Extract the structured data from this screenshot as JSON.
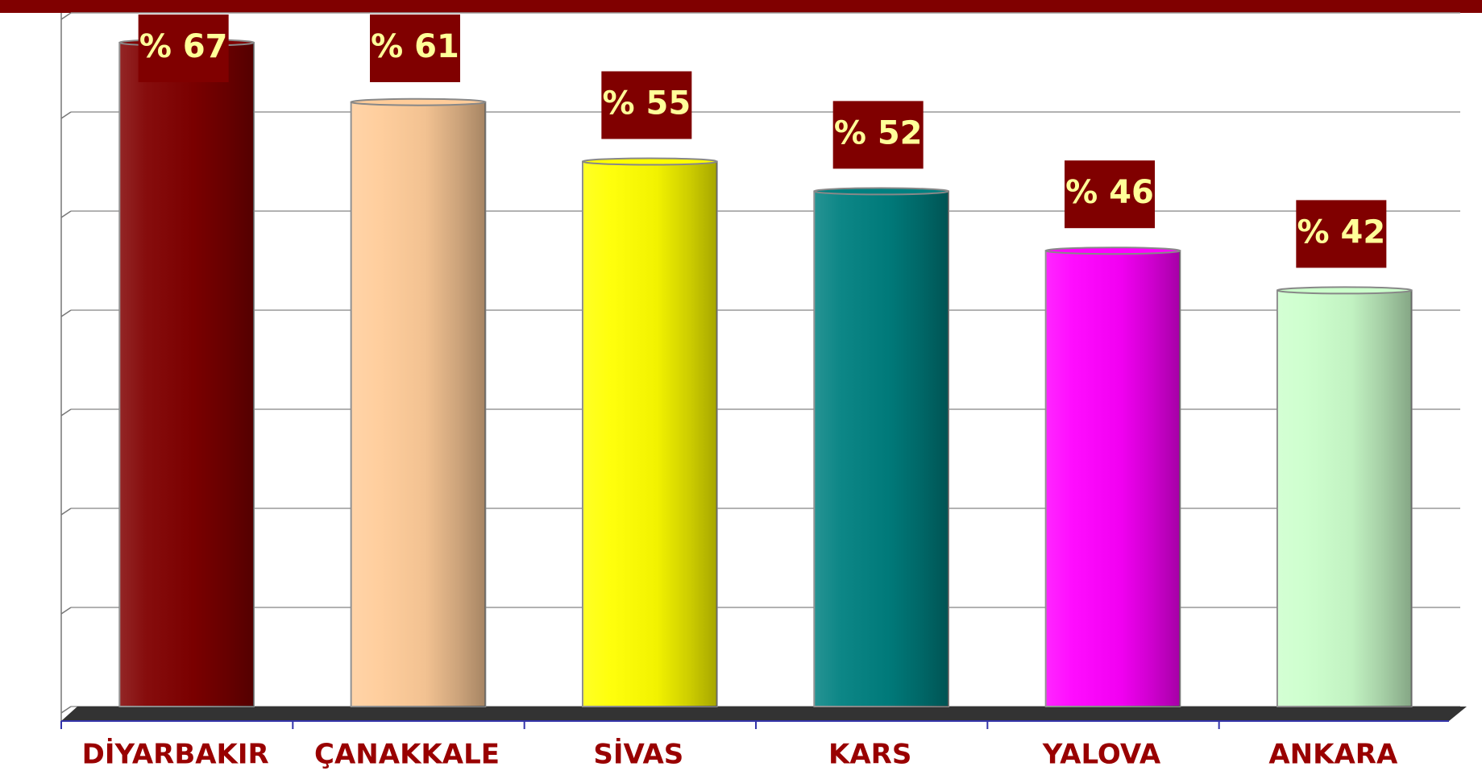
{
  "chart_data": {
    "type": "bar",
    "categories": [
      "DİYARBAKIR",
      "ÇANAKKALE",
      "SİVAS",
      "KARS",
      "YALOVA",
      "ANKARA"
    ],
    "values": [
      67,
      61,
      55,
      52,
      46,
      42
    ],
    "value_labels": [
      "% 67",
      "% 61",
      "% 55",
      "% 52",
      "% 46",
      "% 42"
    ],
    "colors": [
      "#800000",
      "#FFCC99",
      "#FFFF00",
      "#008080",
      "#FF00FF",
      "#CCFFCC"
    ],
    "ylim": [
      0,
      70
    ],
    "yticks": [
      0,
      10,
      20,
      30,
      40,
      50,
      60,
      70
    ],
    "grid": true
  }
}
